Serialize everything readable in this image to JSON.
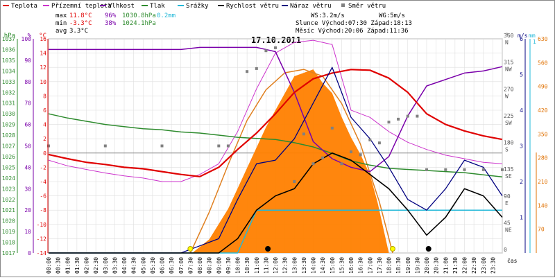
{
  "chart_data": {
    "type": "line",
    "title": "17.10.2011",
    "legend": [
      {
        "name": "Teplota",
        "color": "#e00000",
        "kind": "line"
      },
      {
        "name": "Přízemní teplota",
        "color": "#cc33cc",
        "kind": "line"
      },
      {
        "name": "Vlhkost",
        "color": "#7a00aa",
        "kind": "line"
      },
      {
        "name": "Tlak",
        "color": "#2e8b2e",
        "kind": "line"
      },
      {
        "name": "Srážky",
        "color": "#22b8d8",
        "kind": "line"
      },
      {
        "name": "Rychlost větru",
        "color": "#000000",
        "kind": "line"
      },
      {
        "name": "Náraz větru",
        "color": "#000080",
        "kind": "line"
      },
      {
        "name": "Směr větru",
        "color": "#808080",
        "kind": "square"
      }
    ],
    "stats": {
      "max": {
        "label": "max",
        "temp": "11.8°C",
        "hum": "96%",
        "press": "1030.8hPa",
        "rain": "0.2mm"
      },
      "min": {
        "label": "min",
        "temp": "-3.3°C",
        "hum": "38%",
        "press": "1024.1hPa"
      },
      "avg": {
        "label": "avg",
        "temp": "3.3°C"
      },
      "ws": "WS:3.2m/s",
      "wg": "WG:5m/s",
      "sun": "Slunce Východ:07:30  Západ:18:13",
      "moon": "Měsíc  Východ:20:06  Západ:11:36"
    },
    "axes": {
      "hpa": {
        "unit": "hPa",
        "ticks": [
          "1037",
          "1036",
          "1035",
          "1034",
          "1033",
          "1032",
          "1031",
          "1030",
          "1029",
          "1028",
          "1027",
          "1026",
          "1025",
          "1024",
          "1023",
          "1022",
          "1021",
          "1020",
          "1019",
          "1018",
          "1017"
        ],
        "range": [
          1017,
          1037
        ]
      },
      "pct": {
        "unit": "%",
        "ticks": [
          "100",
          "90",
          "80",
          "70",
          "60",
          "50",
          "40",
          "30",
          "20",
          "10",
          "0"
        ],
        "range": [
          0,
          100
        ]
      },
      "temp": {
        "unit": "°C",
        "ticks": [
          "16",
          "14",
          "12",
          "10",
          "8",
          "6",
          "4",
          "2",
          "0",
          "-2",
          "-4",
          "-6",
          "-8",
          "-10",
          "-12",
          "-14"
        ],
        "range": [
          -14,
          16
        ]
      },
      "dir": {
        "unit": "°",
        "ticks": [
          "360",
          "315",
          "270",
          "225",
          "180",
          "135",
          "90",
          "45",
          "0"
        ],
        "labels": [
          "N",
          "NW",
          "W",
          "SW",
          "S",
          "SE",
          "E",
          "NE",
          ""
        ],
        "range": [
          0,
          360
        ]
      },
      "wind": {
        "unit": "m/s",
        "ticks": [
          "6",
          "5",
          "4",
          "3",
          "2",
          "1"
        ],
        "range": [
          0,
          6
        ]
      },
      "rain": {
        "unit": "mm",
        "ticks": [
          "1"
        ],
        "range": [
          0,
          1
        ]
      },
      "solar": {
        "ticks": [
          "630",
          "560",
          "490",
          "420",
          "350",
          "280",
          "210",
          "140",
          "70"
        ],
        "range": [
          0,
          630
        ]
      },
      "x_unit": "čas",
      "x_ticks": [
        "00:00",
        "00:30",
        "01:00",
        "01:30",
        "02:00",
        "02:30",
        "03:00",
        "03:30",
        "04:00",
        "04:30",
        "05:00",
        "05:30",
        "06:00",
        "06:30",
        "07:00",
        "07:30",
        "08:00",
        "08:30",
        "09:00",
        "09:30",
        "10:00",
        "10:30",
        "11:00",
        "11:30",
        "12:00",
        "12:30",
        "13:00",
        "13:30",
        "14:00",
        "14:30",
        "15:00",
        "15:30",
        "16:00",
        "16:30",
        "17:00",
        "17:30",
        "18:00",
        "18:30",
        "19:00",
        "19:30",
        "20:00",
        "20:30",
        "21:00",
        "21:30",
        "22:00",
        "22:30",
        "23:00",
        "23:30"
      ]
    },
    "series_hours": [
      0,
      1,
      2,
      3,
      4,
      5,
      6,
      7,
      8,
      9,
      10,
      11,
      12,
      13,
      14,
      15,
      16,
      17,
      18,
      19,
      20,
      21,
      22,
      23,
      24
    ],
    "temperature": [
      -0.2,
      -0.8,
      -1.3,
      -1.6,
      -2.0,
      -2.2,
      -2.6,
      -3.0,
      -3.3,
      -2.0,
      0.5,
      2.8,
      5.5,
      8.5,
      10.4,
      11.2,
      11.7,
      11.6,
      10.5,
      8.5,
      5.5,
      4.0,
      3.1,
      2.4,
      1.9
    ],
    "ground_temp": [
      -1.0,
      -1.8,
      -2.3,
      -2.8,
      -3.2,
      -3.5,
      -4.0,
      -4.0,
      -3.0,
      -1.5,
      3.0,
      9.0,
      14.0,
      15.5,
      15.8,
      15.2,
      6.0,
      5.0,
      3.0,
      1.5,
      0.5,
      -0.3,
      -0.8,
      -1.3,
      -1.5
    ],
    "humidity": [
      95,
      95,
      95,
      95,
      95,
      95,
      95,
      95,
      96,
      96,
      96,
      96,
      94,
      75,
      52,
      44,
      40,
      38,
      45,
      64,
      78,
      81,
      84,
      85,
      87
    ],
    "pressure": [
      1030.0,
      1029.6,
      1029.3,
      1029.0,
      1028.8,
      1028.6,
      1028.5,
      1028.3,
      1028.2,
      1028.0,
      1027.8,
      1027.7,
      1027.6,
      1027.3,
      1026.9,
      1026.3,
      1025.6,
      1025.2,
      1024.9,
      1024.8,
      1024.7,
      1024.6,
      1024.5,
      1024.3,
      1024.1
    ],
    "rain": [
      0,
      0,
      0,
      0,
      0,
      0,
      0,
      0,
      0,
      0,
      0,
      0.2,
      0.2,
      0.2,
      0.2,
      0.2,
      0.2,
      0.2,
      0.2,
      0.2,
      0.2,
      0.2,
      0.2,
      0.2,
      0.2
    ],
    "wind_speed": [
      0,
      0,
      0,
      0,
      0,
      0,
      0,
      0,
      0,
      0,
      0.4,
      1.2,
      1.6,
      1.8,
      2.5,
      2.8,
      2.6,
      2.2,
      1.8,
      1.2,
      0.5,
      1.0,
      1.8,
      1.6,
      1.0
    ],
    "wind_gust": [
      0,
      0,
      0,
      0,
      0,
      0,
      0,
      0,
      0.2,
      0.4,
      1.5,
      2.5,
      2.6,
      3.2,
      4.2,
      5.2,
      3.8,
      3.2,
      2.4,
      1.5,
      1.2,
      1.8,
      2.6,
      2.4,
      1.6
    ],
    "solar_hours": [
      7.6,
      8.5,
      9.5,
      10.5,
      11.5,
      12.5,
      13.0,
      14.0,
      14.5,
      15.0,
      15.5,
      16.0,
      16.5,
      17.0,
      17.4,
      18.0
    ],
    "solar_values": [
      0,
      40,
      130,
      250,
      370,
      470,
      520,
      540,
      500,
      470,
      400,
      340,
      290,
      230,
      150,
      0
    ],
    "solar_max_hours": [
      7.5,
      8.5,
      9.5,
      10.5,
      11.5,
      12.5,
      13.5,
      14.5,
      15.5,
      16.5,
      17.5,
      18.2
    ],
    "solar_max_values": [
      0,
      120,
      260,
      390,
      480,
      530,
      540,
      520,
      440,
      320,
      150,
      0
    ],
    "wind_dir_hours": [
      0,
      3,
      6,
      9,
      9.5,
      10.5,
      11,
      11.5,
      12,
      13,
      13.5,
      14,
      14.5,
      15,
      15.5,
      16,
      16.5,
      17,
      17.5,
      18,
      18.5,
      19,
      19.5,
      20,
      21,
      22,
      23,
      24
    ],
    "wind_dir_values": [
      180,
      180,
      180,
      180,
      180,
      305,
      310,
      340,
      345,
      120,
      200,
      150,
      160,
      210,
      150,
      170,
      165,
      190,
      185,
      220,
      225,
      230,
      230,
      140,
      140,
      140,
      140,
      140
    ]
  }
}
